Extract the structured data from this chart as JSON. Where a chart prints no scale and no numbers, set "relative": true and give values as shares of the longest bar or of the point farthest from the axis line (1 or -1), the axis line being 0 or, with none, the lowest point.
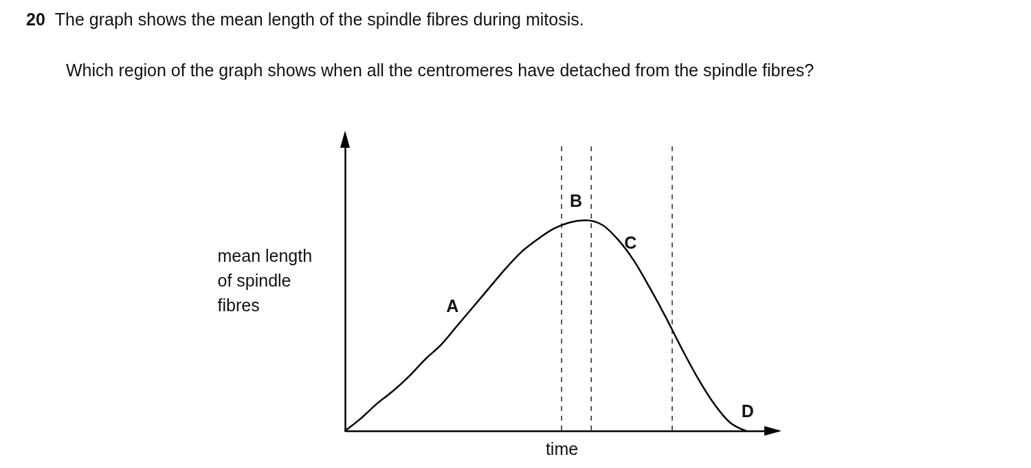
{
  "chart_data": {
    "type": "line",
    "title": "20  The graph shows the mean length of the spindle fibres during mitosis.",
    "subtitle": "Which region of the graph shows when all the centromeres have detached from the spindle fibres?",
    "xlabel": "time",
    "ylabel": "mean length of spindle fibres",
    "relative": true,
    "tick_labels": false,
    "color": "#000000",
    "categories": [
      null,
      null,
      null,
      null,
      null,
      null,
      null,
      null,
      null,
      null,
      null,
      null,
      null,
      null,
      null,
      null,
      null,
      null,
      null,
      null,
      null,
      null,
      null,
      null,
      null,
      null,
      null,
      null
    ],
    "values": [
      0,
      0.06,
      0.13,
      0.19,
      0.26,
      0.34,
      0.41,
      0.5,
      0.59,
      0.68,
      0.77,
      0.85,
      0.91,
      0.96,
      0.99,
      1,
      0.98,
      0.91,
      0.81,
      0.68,
      0.54,
      0.39,
      0.25,
      0.13,
      0.04,
      0,
      null,
      null
    ],
    "annotations": [
      "A",
      "B",
      "C",
      "D"
    ]
  }
}
